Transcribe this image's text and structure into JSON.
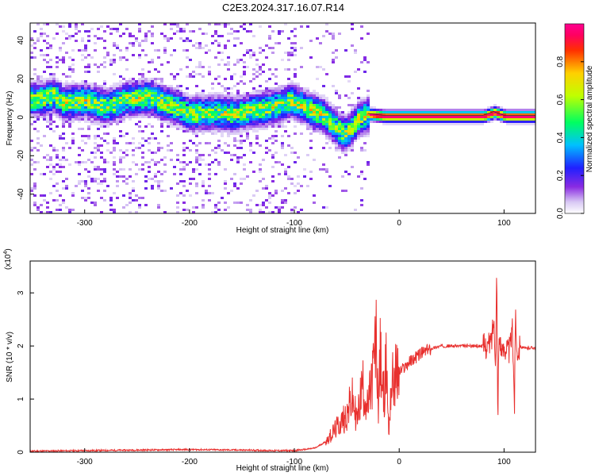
{
  "title": "C2E3.2024.317.16.07.R14",
  "chart_data": [
    {
      "type": "heatmap",
      "xlabel": "Height of straight line (km)",
      "ylabel": "Frequency (Hz)",
      "xlim": [
        -352,
        130
      ],
      "ylim": [
        -50,
        49
      ],
      "x_ticks": [
        -300,
        -200,
        -100,
        0,
        100
      ],
      "y_ticks": [
        -40,
        -20,
        0,
        20,
        40
      ],
      "colorbar": {
        "label": "Normalized spectral amplitude",
        "range": [
          0,
          1
        ],
        "ticks": [
          "0.0",
          "0.2",
          "0.4",
          "0.6",
          "0.8"
        ]
      },
      "ridge": [
        {
          "x": -340,
          "y": 10
        },
        {
          "x": -330,
          "y": 12
        },
        {
          "x": -322,
          "y": 8
        },
        {
          "x": -300,
          "y": 9
        },
        {
          "x": -280,
          "y": 6
        },
        {
          "x": -260,
          "y": 10
        },
        {
          "x": -240,
          "y": 11
        },
        {
          "x": -220,
          "y": 7
        },
        {
          "x": -200,
          "y": 2
        },
        {
          "x": -180,
          "y": 3
        },
        {
          "x": -160,
          "y": 2
        },
        {
          "x": -140,
          "y": 4
        },
        {
          "x": -120,
          "y": 6
        },
        {
          "x": -105,
          "y": 9
        },
        {
          "x": -95,
          "y": 7
        },
        {
          "x": -85,
          "y": 4
        },
        {
          "x": -75,
          "y": 2
        },
        {
          "x": -65,
          "y": -3
        },
        {
          "x": -55,
          "y": -8
        },
        {
          "x": -48,
          "y": -6
        },
        {
          "x": -40,
          "y": 0
        },
        {
          "x": -30,
          "y": 2
        },
        {
          "x": -15,
          "y": 1
        },
        {
          "x": 0,
          "y": 1
        },
        {
          "x": 20,
          "y": 1
        },
        {
          "x": 50,
          "y": 1
        },
        {
          "x": 80,
          "y": 1
        },
        {
          "x": 90,
          "y": 3
        },
        {
          "x": 100,
          "y": 1
        },
        {
          "x": 130,
          "y": 1
        }
      ]
    },
    {
      "type": "line",
      "xlabel": "Height of straight line (km)",
      "ylabel": "SNR (10 * v/v)",
      "y_exponent": "(x10",
      "y_exponent_power": "4",
      "y_exponent_close": ")",
      "xlim": [
        -352,
        130
      ],
      "ylim": [
        0,
        3.6
      ],
      "x_ticks": [
        -300,
        -200,
        -100,
        0,
        100
      ],
      "y_ticks": [
        0,
        1,
        2,
        3
      ],
      "color": "#e8302e",
      "series": [
        {
          "x": [
            -352,
            -300,
            -250,
            -200,
            -150,
            -120,
            -100,
            -90,
            -80,
            -70,
            -60,
            -50,
            -45,
            -40,
            -35,
            -30,
            -25,
            -22,
            -20,
            -18,
            -15,
            -12,
            -10,
            -8,
            -5,
            0,
            5,
            10,
            20,
            30,
            40,
            50,
            60,
            70,
            80,
            85,
            88,
            90,
            92,
            93,
            94,
            95,
            96,
            98,
            100,
            105,
            108,
            110,
            111,
            112,
            115,
            120,
            125,
            130
          ],
          "y": [
            0.02,
            0.03,
            0.04,
            0.05,
            0.04,
            0.03,
            0.03,
            0.05,
            0.08,
            0.2,
            0.45,
            0.7,
            1.0,
            0.6,
            1.3,
            0.8,
            1.5,
            2.1,
            0.9,
            1.8,
            1.0,
            1.7,
            0.3,
            1.2,
            1.4,
            1.5,
            1.6,
            1.7,
            1.85,
            1.95,
            2.0,
            2.0,
            2.0,
            2.0,
            2.0,
            2.0,
            2.1,
            2.5,
            1.8,
            3.5,
            0.6,
            2.0,
            2.2,
            1.8,
            2.0,
            1.9,
            2.3,
            0.9,
            2.8,
            1.9,
            2.0,
            1.95,
            1.97,
            1.97
          ]
        }
      ]
    }
  ]
}
